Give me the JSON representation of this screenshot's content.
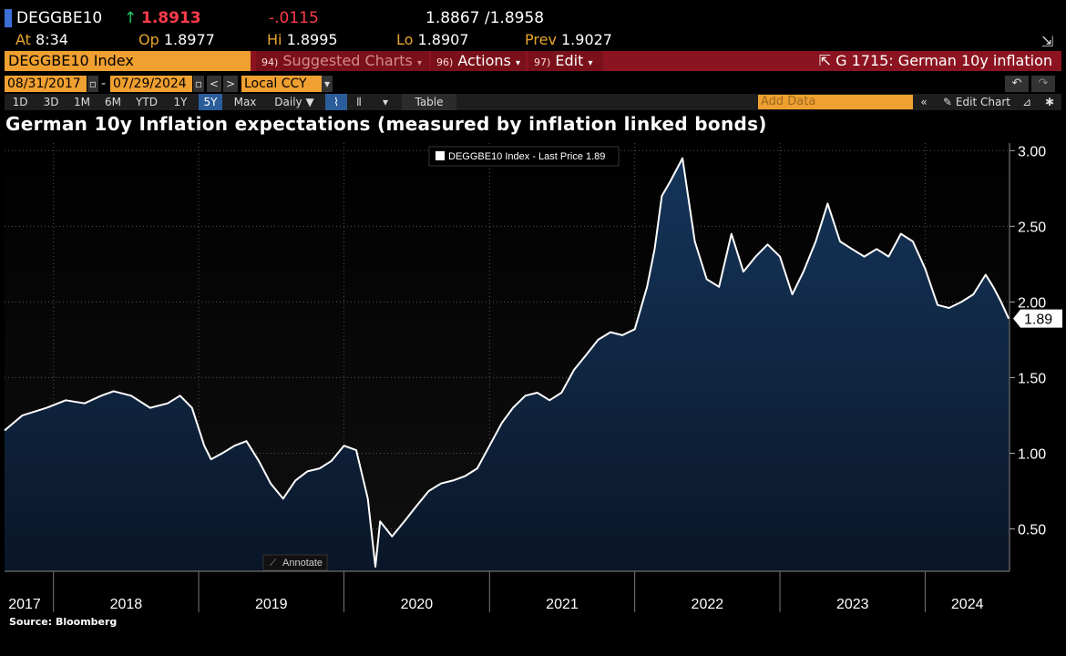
{
  "quote": {
    "ticker": "DEGGBE10",
    "last": "1.8913",
    "change": "-.0115",
    "bid_ask": "1.8867 /1.8958",
    "at_label": "At",
    "at_value": "8:34",
    "op_label": "Op",
    "op_value": "1.8977",
    "hi_label": "Hi",
    "hi_value": "1.8995",
    "lo_label": "Lo",
    "lo_value": "1.8907",
    "prev_label": "Prev",
    "prev_value": "1.9027"
  },
  "command_bar": {
    "security": "DEGGBE10 Index",
    "suggested_num": "94)",
    "suggested": "Suggested Charts",
    "actions_num": "96)",
    "actions": "Actions",
    "edit_num": "97)",
    "edit": "Edit",
    "chart_id": "G 1715: German 10y inflation"
  },
  "date_bar": {
    "start": "08/31/2017",
    "end": "07/29/2024",
    "currency": "Local CCY"
  },
  "toolbar": {
    "periods": [
      "1D",
      "3D",
      "1M",
      "6M",
      "YTD",
      "1Y",
      "5Y",
      "Max"
    ],
    "active_period": "5Y",
    "frequency": "Daily",
    "table_label": "Table",
    "add_data_placeholder": "Add Data",
    "edit_chart": "Edit Chart"
  },
  "annotate_label": "Annotate",
  "source": "Source: Bloomberg",
  "colors": {
    "accent": "#f0a030",
    "command": "#8b1420",
    "area_top": "#15355a",
    "area_bottom": "#0a1628"
  },
  "chart_data": {
    "type": "area",
    "title": "German 10y Inflation expectations (measured by inflation linked bonds)",
    "legend": "DEGGBE10 Index - Last Price 1.89",
    "legend_position": "top-center",
    "last_value_label": "1.89",
    "xlabel": "",
    "ylabel": "",
    "x_ticks": [
      "2017",
      "2018",
      "2019",
      "2020",
      "2021",
      "2022",
      "2023",
      "2024"
    ],
    "y_ticks": [
      "0.50",
      "1.00",
      "1.50",
      "2.00",
      "2.50",
      "3.00"
    ],
    "ylim": [
      0.22,
      3.05
    ],
    "xlim": [
      "2017-08-31",
      "2024-07-31"
    ],
    "grid": true,
    "series": [
      {
        "values": [
          [
            "2017-08-31",
            1.15
          ],
          [
            "2017-10-15",
            1.25
          ],
          [
            "2017-12-15",
            1.3
          ],
          [
            "2018-02-01",
            1.35
          ],
          [
            "2018-03-20",
            1.33
          ],
          [
            "2018-05-01",
            1.38
          ],
          [
            "2018-06-01",
            1.41
          ],
          [
            "2018-07-15",
            1.38
          ],
          [
            "2018-09-01",
            1.3
          ],
          [
            "2018-10-15",
            1.33
          ],
          [
            "2018-11-15",
            1.38
          ],
          [
            "2018-12-15",
            1.3
          ],
          [
            "2019-01-15",
            1.05
          ],
          [
            "2019-02-01",
            0.96
          ],
          [
            "2019-03-01",
            1.0
          ],
          [
            "2019-04-01",
            1.05
          ],
          [
            "2019-05-01",
            1.08
          ],
          [
            "2019-06-01",
            0.95
          ],
          [
            "2019-07-01",
            0.8
          ],
          [
            "2019-08-01",
            0.7
          ],
          [
            "2019-09-01",
            0.82
          ],
          [
            "2019-10-01",
            0.88
          ],
          [
            "2019-11-01",
            0.9
          ],
          [
            "2019-12-01",
            0.95
          ],
          [
            "2020-01-01",
            1.05
          ],
          [
            "2020-02-01",
            1.02
          ],
          [
            "2020-03-01",
            0.7
          ],
          [
            "2020-03-20",
            0.25
          ],
          [
            "2020-04-01",
            0.55
          ],
          [
            "2020-05-01",
            0.45
          ],
          [
            "2020-06-01",
            0.55
          ],
          [
            "2020-07-01",
            0.65
          ],
          [
            "2020-08-01",
            0.75
          ],
          [
            "2020-09-01",
            0.8
          ],
          [
            "2020-10-01",
            0.82
          ],
          [
            "2020-11-01",
            0.85
          ],
          [
            "2020-12-01",
            0.9
          ],
          [
            "2021-01-01",
            1.05
          ],
          [
            "2021-02-01",
            1.2
          ],
          [
            "2021-03-01",
            1.3
          ],
          [
            "2021-04-01",
            1.38
          ],
          [
            "2021-05-01",
            1.4
          ],
          [
            "2021-06-01",
            1.35
          ],
          [
            "2021-07-01",
            1.4
          ],
          [
            "2021-08-01",
            1.55
          ],
          [
            "2021-09-01",
            1.65
          ],
          [
            "2021-10-01",
            1.75
          ],
          [
            "2021-11-01",
            1.8
          ],
          [
            "2021-12-01",
            1.78
          ],
          [
            "2022-01-01",
            1.82
          ],
          [
            "2022-02-01",
            2.1
          ],
          [
            "2022-02-20",
            2.35
          ],
          [
            "2022-03-10",
            2.7
          ],
          [
            "2022-04-01",
            2.8
          ],
          [
            "2022-05-01",
            2.95
          ],
          [
            "2022-05-15",
            2.7
          ],
          [
            "2022-06-01",
            2.4
          ],
          [
            "2022-07-01",
            2.15
          ],
          [
            "2022-08-01",
            2.1
          ],
          [
            "2022-09-01",
            2.45
          ],
          [
            "2022-10-01",
            2.2
          ],
          [
            "2022-11-01",
            2.3
          ],
          [
            "2022-12-01",
            2.38
          ],
          [
            "2023-01-01",
            2.3
          ],
          [
            "2023-02-01",
            2.05
          ],
          [
            "2023-03-01",
            2.2
          ],
          [
            "2023-04-01",
            2.4
          ],
          [
            "2023-05-01",
            2.65
          ],
          [
            "2023-06-01",
            2.4
          ],
          [
            "2023-07-01",
            2.35
          ],
          [
            "2023-08-01",
            2.3
          ],
          [
            "2023-09-01",
            2.35
          ],
          [
            "2023-10-01",
            2.3
          ],
          [
            "2023-11-01",
            2.45
          ],
          [
            "2023-12-01",
            2.4
          ],
          [
            "2024-01-01",
            2.22
          ],
          [
            "2024-02-01",
            1.98
          ],
          [
            "2024-03-01",
            1.96
          ],
          [
            "2024-04-01",
            2.0
          ],
          [
            "2024-05-01",
            2.05
          ],
          [
            "2024-06-01",
            2.18
          ],
          [
            "2024-06-20",
            2.1
          ],
          [
            "2024-07-10",
            2.0
          ],
          [
            "2024-07-29",
            1.89
          ]
        ]
      }
    ]
  }
}
